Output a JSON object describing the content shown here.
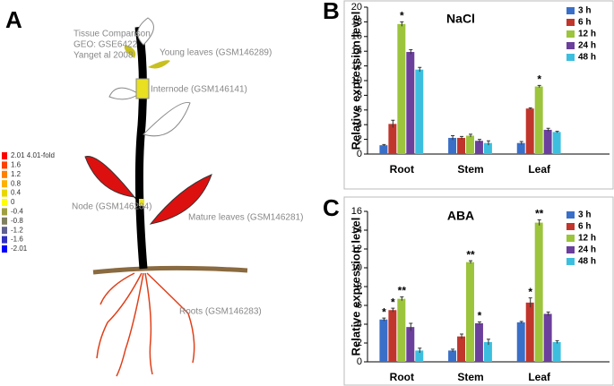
{
  "panel_a": {
    "letter": "A",
    "info": [
      "Tissue Comparison",
      "GEO: GSE6422",
      "Yanget al 2008"
    ],
    "labels": {
      "young": "Young leaves (GSM146289)",
      "internode": "Internode (GSM146141)",
      "node": "Node (GSM146284)",
      "mature": "Mature leaves (GSM146281)",
      "roots": "Roots (GSM146283)"
    },
    "scale": [
      {
        "label": "2.01 4.01-fold",
        "color": "#ff0000"
      },
      {
        "label": "1.6",
        "color": "#ff4000"
      },
      {
        "label": "1.2",
        "color": "#ff8000"
      },
      {
        "label": "0.8",
        "color": "#ffb000"
      },
      {
        "label": "0.4",
        "color": "#e8d800"
      },
      {
        "label": "0",
        "color": "#ffff00"
      },
      {
        "label": "-0.4",
        "color": "#a0a040"
      },
      {
        "label": "-0.8",
        "color": "#808060"
      },
      {
        "label": "-1.2",
        "color": "#606090"
      },
      {
        "label": "-1.6",
        "color": "#3030c0"
      },
      {
        "label": "-2.01",
        "color": "#0000ff"
      }
    ]
  },
  "chart_data": [
    {
      "type": "bar",
      "panel": "B",
      "title": "NaCl",
      "y_label": "Relative expression level",
      "categories": [
        "Root",
        "Stem",
        "Leaf"
      ],
      "ylim": [
        0,
        20
      ],
      "yticks": [
        0,
        2,
        4,
        6,
        8,
        10,
        12,
        14,
        16,
        18,
        20
      ],
      "series": [
        {
          "name": "3 h",
          "color": "#3a6fc8",
          "values": [
            1.2,
            2.2,
            1.5
          ],
          "errors": [
            0.1,
            0.3,
            0.2
          ],
          "significance": [
            null,
            null,
            null
          ]
        },
        {
          "name": "6 h",
          "color": "#c0362c",
          "values": [
            4.1,
            2.2,
            6.2
          ],
          "errors": [
            0.5,
            0.2,
            0.1
          ],
          "significance": [
            null,
            null,
            null
          ]
        },
        {
          "name": "12 h",
          "color": "#9cc43c",
          "values": [
            17.7,
            2.5,
            9.2
          ],
          "errors": [
            0.3,
            0.2,
            0.15
          ],
          "significance": [
            "*",
            null,
            "*"
          ]
        },
        {
          "name": "24 h",
          "color": "#6b3f9c",
          "values": [
            13.9,
            1.8,
            3.3
          ],
          "errors": [
            0.3,
            0.2,
            0.2
          ],
          "significance": [
            null,
            null,
            null
          ]
        },
        {
          "name": "48 h",
          "color": "#3cbfdf",
          "values": [
            11.5,
            1.5,
            3.0
          ],
          "errors": [
            0.3,
            0.3,
            0.1
          ],
          "significance": [
            null,
            null,
            null
          ]
        }
      ]
    },
    {
      "type": "bar",
      "panel": "C",
      "title": "ABA",
      "y_label": "Relative expression level",
      "categories": [
        "Root",
        "Stem",
        "Leaf"
      ],
      "ylim": [
        0,
        16
      ],
      "yticks": [
        0,
        2,
        4,
        6,
        8,
        10,
        12,
        14,
        16
      ],
      "series": [
        {
          "name": "3 h",
          "color": "#3a6fc8",
          "values": [
            4.5,
            1.2,
            4.2
          ],
          "errors": [
            0.15,
            0.15,
            0.1
          ],
          "significance": [
            "*",
            null,
            null
          ]
        },
        {
          "name": "6 h",
          "color": "#c0362c",
          "values": [
            5.5,
            2.7,
            6.3
          ],
          "errors": [
            0.2,
            0.25,
            0.5
          ],
          "significance": [
            "*",
            null,
            "*"
          ]
        },
        {
          "name": "12 h",
          "color": "#9cc43c",
          "values": [
            6.7,
            10.6,
            14.8
          ],
          "errors": [
            0.2,
            0.15,
            0.3
          ],
          "significance": [
            "**",
            "**",
            "**"
          ]
        },
        {
          "name": "24 h",
          "color": "#6b3f9c",
          "values": [
            3.7,
            4.1,
            5.1
          ],
          "errors": [
            0.4,
            0.15,
            0.2
          ],
          "significance": [
            null,
            "*",
            null
          ]
        },
        {
          "name": "48 h",
          "color": "#3cbfdf",
          "values": [
            1.2,
            2.1,
            2.1
          ],
          "errors": [
            0.25,
            0.3,
            0.15
          ],
          "significance": [
            null,
            null,
            null
          ]
        }
      ]
    }
  ]
}
